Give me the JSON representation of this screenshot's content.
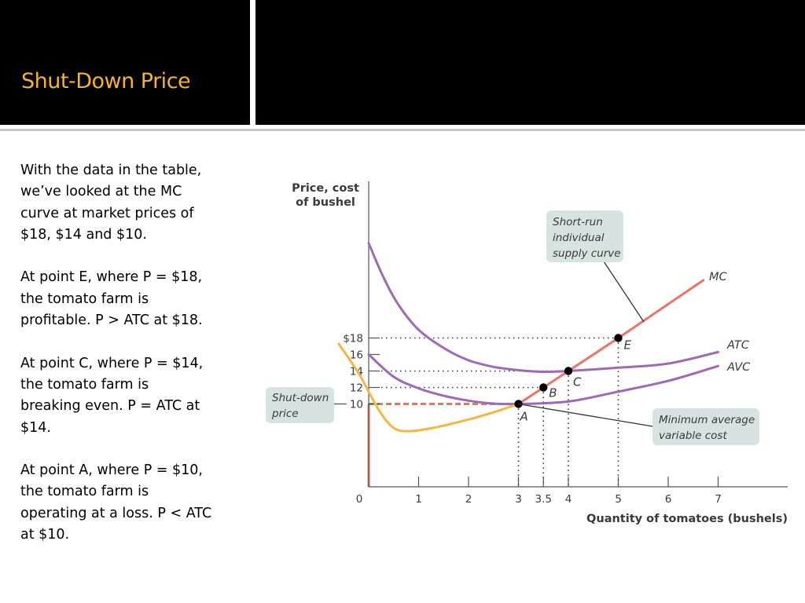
{
  "slide": {
    "title": "Shut-Down Price",
    "paragraphs": [
      [
        "With the data in the table,",
        "we’ve looked at the MC",
        "curve at market prices of",
        "$18, $14 and $10."
      ],
      [
        "At point E, where P = $18,",
        "the tomato farm is",
        "profitable.  P > ATC at $18."
      ],
      [
        "At point C, where P = $14,",
        "the tomato farm is",
        "breaking even.  P = ATC at",
        "$14."
      ],
      [
        "At point A, where P = $10,",
        "the tomato farm is",
        "operating at a loss.  P < ATC",
        "at $10."
      ]
    ]
  },
  "colors": {
    "header_bg": "#000000",
    "title": "#f2b431",
    "mc": "#e8746a",
    "atc_avc": "#9b6bb5",
    "yellow_curve": "#f5b642",
    "shutdown_line": "#e8746a",
    "callout_bg": "#d6e3e1"
  },
  "chart_data": {
    "type": "line",
    "ylabel": [
      "Price, cost",
      "of bushel"
    ],
    "xlabel": "Quantity of tomatoes (bushels)",
    "origin_label": "0",
    "xticks": [
      {
        "value": 1,
        "label": "1"
      },
      {
        "value": 2,
        "label": "2"
      },
      {
        "value": 3,
        "label": "3"
      },
      {
        "value": 3.5,
        "label": "3.5"
      },
      {
        "value": 4,
        "label": "4"
      },
      {
        "value": 5,
        "label": "5"
      },
      {
        "value": 6,
        "label": "6"
      },
      {
        "value": 7,
        "label": "7"
      }
    ],
    "yticks": [
      {
        "value": 18,
        "label": "$18"
      },
      {
        "value": 16,
        "label": "16"
      },
      {
        "value": 14,
        "label": "14"
      },
      {
        "value": 12,
        "label": "12"
      },
      {
        "value": 10,
        "label": "10"
      }
    ],
    "series": [
      {
        "name": "MC",
        "key": "mc",
        "points": [
          [
            3,
            10
          ],
          [
            3.5,
            12
          ],
          [
            4,
            14
          ],
          [
            5,
            18
          ],
          [
            6.7,
            25
          ]
        ]
      },
      {
        "name": "ATC",
        "key": "atc",
        "points": [
          [
            0,
            29.5
          ],
          [
            0.3,
            25.3
          ],
          [
            0.6,
            22
          ],
          [
            1,
            19
          ],
          [
            1.5,
            16.8
          ],
          [
            2,
            15.3
          ],
          [
            2.5,
            14.5
          ],
          [
            3,
            14.1
          ],
          [
            3.5,
            13.9
          ],
          [
            4,
            14
          ],
          [
            5,
            14.4
          ],
          [
            6,
            14.9
          ],
          [
            7,
            16.3
          ]
        ]
      },
      {
        "name": "AVC",
        "key": "avc",
        "points": [
          [
            0,
            16
          ],
          [
            0.5,
            13.3
          ],
          [
            1,
            11.9
          ],
          [
            1.5,
            11
          ],
          [
            2,
            10.4
          ],
          [
            2.5,
            10.05
          ],
          [
            3,
            10
          ],
          [
            4,
            10.3
          ],
          [
            5,
            11.5
          ],
          [
            6,
            12.8
          ],
          [
            7,
            14.6
          ]
        ]
      },
      {
        "name": "",
        "key": "yellow",
        "points": [
          [
            -0.6,
            17.3
          ],
          [
            -0.2,
            13.7
          ],
          [
            0.2,
            9.3
          ],
          [
            0.5,
            7.1
          ],
          [
            0.8,
            6.7
          ],
          [
            1.2,
            7
          ],
          [
            1.8,
            7.8
          ],
          [
            2.4,
            8.8
          ],
          [
            3,
            10
          ]
        ]
      }
    ],
    "points": [
      {
        "label": "E",
        "x": 5,
        "y": 18
      },
      {
        "label": "C",
        "x": 4,
        "y": 14
      },
      {
        "label": "B",
        "x": 3.5,
        "y": 12
      },
      {
        "label": "A",
        "x": 3,
        "y": 10
      }
    ],
    "shutdown_price": 10,
    "annotations": {
      "supply": [
        "Short-run",
        "individual",
        "supply curve"
      ],
      "shutdown": [
        "Shut-down",
        "price"
      ],
      "min_avc": [
        "Minimum average",
        "variable cost"
      ]
    }
  }
}
